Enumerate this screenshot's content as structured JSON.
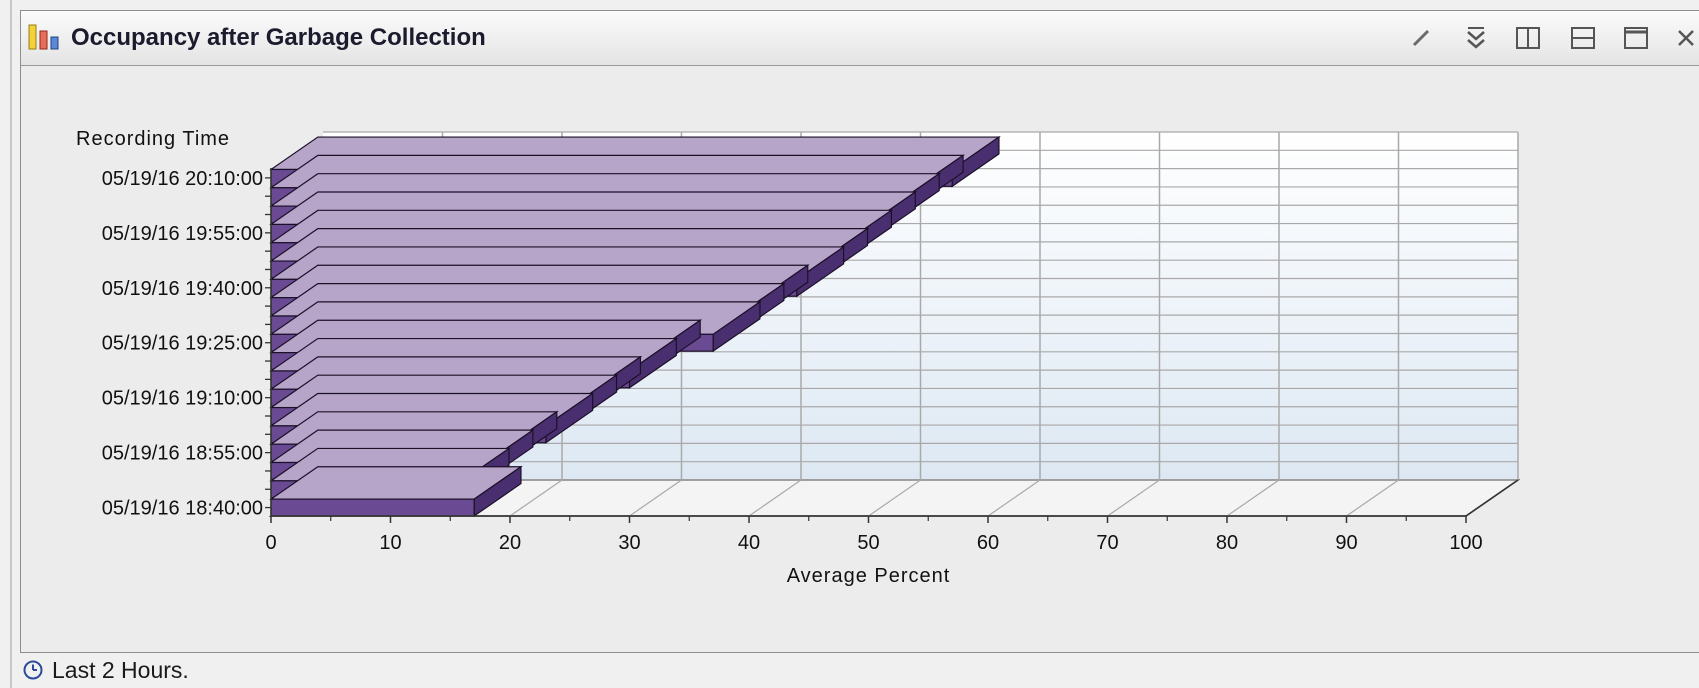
{
  "window": {
    "title": "Occupancy after Garbage Collection",
    "toolbar_icons": [
      "edit-icon",
      "collapse-icon",
      "split-vertical-icon",
      "split-horizontal-icon",
      "maximize-icon",
      "close-icon"
    ]
  },
  "status": {
    "icon": "clock-icon",
    "text": "Last 2 Hours."
  },
  "colors": {
    "bar_front": "#6a4a93",
    "bar_top": "#b6a4c9",
    "bar_side": "#4a2f70",
    "plot_gradient_top": "#ffffff",
    "plot_gradient_bottom": "#dde8f3",
    "grid": "#a9a9a9"
  },
  "chart_data": {
    "type": "bar",
    "orientation": "horizontal",
    "style": "3d",
    "title": "",
    "ylabel": "Recording Time",
    "xlabel": "Average Percent",
    "xlim": [
      0,
      100
    ],
    "xticks": [
      0,
      10,
      20,
      30,
      40,
      50,
      60,
      70,
      80,
      90,
      100
    ],
    "category_tick_labels": [
      "05/19/16 18:40:00",
      "05/19/16 18:55:00",
      "05/19/16 19:10:00",
      "05/19/16 19:25:00",
      "05/19/16 19:40:00",
      "05/19/16 19:55:00",
      "05/19/16 20:10:00"
    ],
    "category_tick_every": 3,
    "values": [
      17,
      16,
      18,
      20,
      23,
      25,
      27,
      30,
      32,
      37,
      39,
      41,
      44,
      46,
      48,
      50,
      52,
      54,
      57
    ],
    "grid": true,
    "legend": "none"
  }
}
